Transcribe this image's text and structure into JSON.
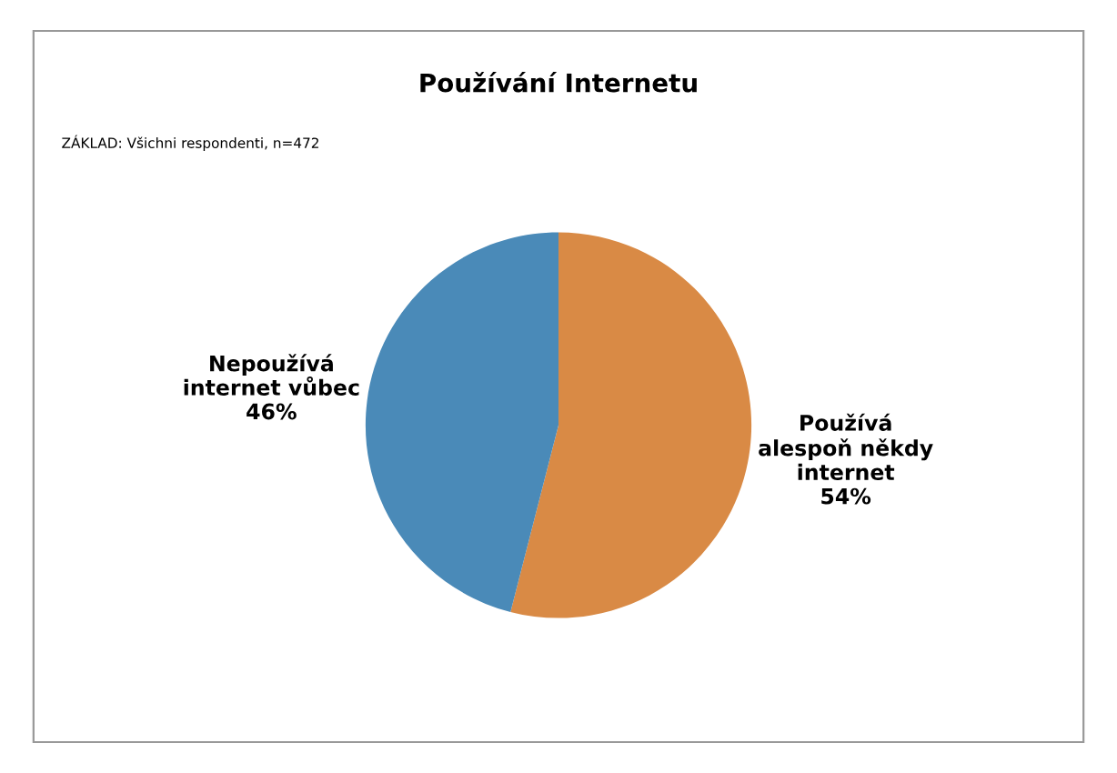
{
  "chart_data": {
    "type": "pie",
    "title": "Používání Internetu",
    "subtitle": "ZÁKLAD: Všichni respondenti, n=472",
    "categories": [
      "Používá\nalespoň někdy\ninternet",
      "Nepoužívá\ninternet vůbec"
    ],
    "values": [
      54,
      46
    ],
    "colors": [
      "#d98a45",
      "#4a8ab8"
    ],
    "value_labels": [
      "54%",
      "46%"
    ]
  }
}
